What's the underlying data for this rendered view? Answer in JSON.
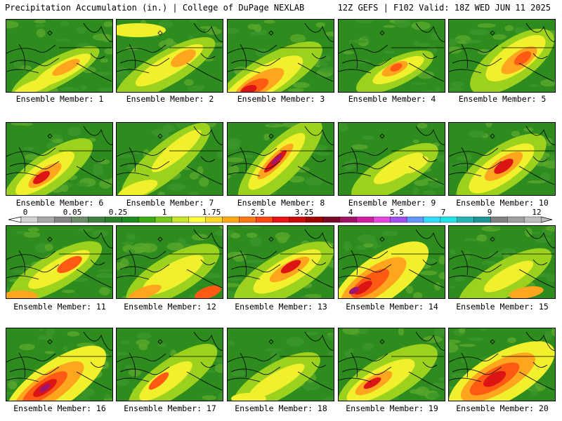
{
  "header": {
    "title": "Precipitation Accumulation (in.) | College of DuPage NEXLAB",
    "run_info": "12Z GEFS | F102 Valid: 18Z WED JUN 11 2025"
  },
  "members": [
    {
      "label": "Ensemble Member: 1"
    },
    {
      "label": "Ensemble Member: 2"
    },
    {
      "label": "Ensemble Member: 3"
    },
    {
      "label": "Ensemble Member: 4"
    },
    {
      "label": "Ensemble Member: 5"
    },
    {
      "label": "Ensemble Member: 6"
    },
    {
      "label": "Ensemble Member: 7"
    },
    {
      "label": "Ensemble Member: 8"
    },
    {
      "label": "Ensemble Member: 9"
    },
    {
      "label": "Ensemble Member: 10"
    },
    {
      "label": "Ensemble Member: 11"
    },
    {
      "label": "Ensemble Member: 12"
    },
    {
      "label": "Ensemble Member: 13"
    },
    {
      "label": "Ensemble Member: 14"
    },
    {
      "label": "Ensemble Member: 15"
    },
    {
      "label": "Ensemble Member: 16"
    },
    {
      "label": "Ensemble Member: 17"
    },
    {
      "label": "Ensemble Member: 18"
    },
    {
      "label": "Ensemble Member: 19"
    },
    {
      "label": "Ensemble Member: 20"
    }
  ],
  "colorbar": {
    "tick_labels": [
      "0",
      "0.05",
      "0.25",
      "1",
      "1.75",
      "2.5",
      "3.25",
      "4",
      "5.5",
      "7",
      "9",
      "12"
    ],
    "colors": [
      "#d4d4d4",
      "#a8a8a8",
      "#868686",
      "#6c8c6c",
      "#3f7f3f",
      "#2a7f2a",
      "#1e8c1e",
      "#3caa14",
      "#78c81e",
      "#c8e628",
      "#ffff3c",
      "#ffd728",
      "#ffaa14",
      "#ff7814",
      "#ff4614",
      "#e61414",
      "#c80a0a",
      "#a00000",
      "#780a28",
      "#a01464",
      "#d21ea0",
      "#e646dc",
      "#a050f0",
      "#6496ff",
      "#32dcff",
      "#1ee6e6",
      "#28b4b4",
      "#1e9696",
      "#828282",
      "#a0a0a0",
      "#bebebe"
    ]
  },
  "palette": {
    "dry": "#2e8b1e",
    "light": "#5aa82a",
    "lightmod": "#9cd21e",
    "moderate": "#f0f02c",
    "heavy": "#ffa51e",
    "vheavy": "#ff5a14",
    "extreme": "#dc1414",
    "max": "#a0146e"
  }
}
